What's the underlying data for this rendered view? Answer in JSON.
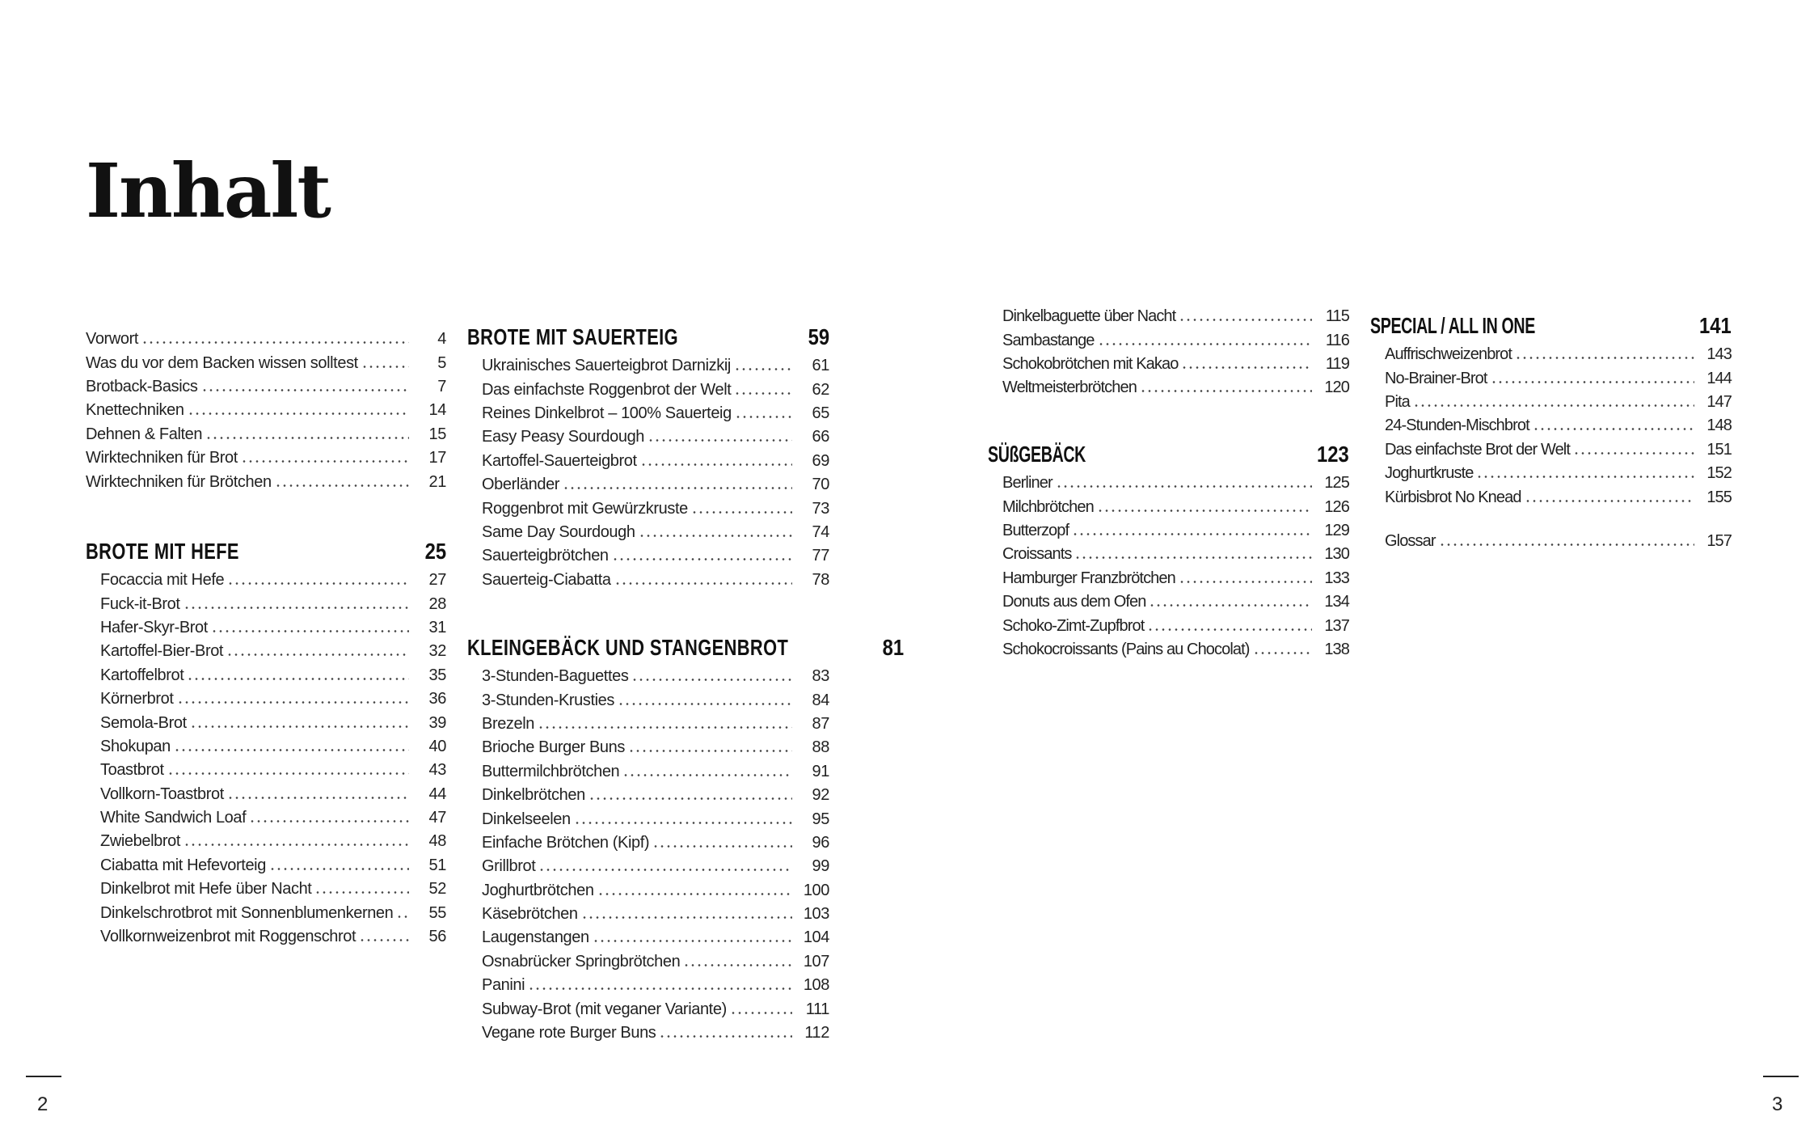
{
  "title": "Inhalt",
  "page_numbers": {
    "left": "2",
    "right": "3"
  },
  "blocks": [
    {
      "id": "intro",
      "items": [
        [
          "Vorwort",
          "4"
        ],
        [
          "Was du vor dem Backen wissen solltest",
          "5"
        ],
        [
          "Brotback-Basics",
          "7"
        ],
        [
          "Knettechniken",
          "14"
        ],
        [
          "Dehnen & Falten",
          "15"
        ],
        [
          "Wirktechniken für Brot",
          "17"
        ],
        [
          "Wirktechniken für Brötchen",
          "21"
        ]
      ]
    },
    {
      "id": "hefe",
      "heading": "BROTE MIT HEFE",
      "page": "25",
      "items": [
        [
          "Focaccia mit Hefe",
          "27"
        ],
        [
          "Fuck-it-Brot",
          "28"
        ],
        [
          "Hafer-Skyr-Brot",
          "31"
        ],
        [
          "Kartoffel-Bier-Brot",
          "32"
        ],
        [
          "Kartoffelbrot",
          "35"
        ],
        [
          "Körnerbrot",
          "36"
        ],
        [
          "Semola-Brot",
          "39"
        ],
        [
          "Shokupan",
          "40"
        ],
        [
          "Toastbrot",
          "43"
        ],
        [
          "Vollkorn-Toastbrot",
          "44"
        ],
        [
          "White Sandwich Loaf",
          "47"
        ],
        [
          "Zwiebelbrot",
          "48"
        ],
        [
          "Ciabatta mit Hefevorteig",
          "51"
        ],
        [
          "Dinkelbrot mit Hefe über Nacht",
          "52"
        ],
        [
          "Dinkelschrotbrot mit Sonnenblumenkernen",
          "55"
        ],
        [
          "Vollkornweizenbrot mit Roggenschrot",
          "56"
        ]
      ]
    },
    {
      "id": "sauerteig",
      "heading": "BROTE MIT SAUERTEIG",
      "page": "59",
      "items": [
        [
          "Ukrainisches Sauerteigbrot Darnizkij",
          "61"
        ],
        [
          "Das einfachste Roggenbrot der Welt",
          "62"
        ],
        [
          "Reines Dinkelbrot – 100% Sauerteig",
          "65"
        ],
        [
          "Easy Peasy Sourdough",
          "66"
        ],
        [
          "Kartoffel-Sauerteigbrot",
          "69"
        ],
        [
          "Oberländer",
          "70"
        ],
        [
          "Roggenbrot mit Gewürzkruste",
          "73"
        ],
        [
          "Same Day Sourdough",
          "74"
        ],
        [
          "Sauerteigbrötchen",
          "77"
        ],
        [
          "Sauerteig-Ciabatta",
          "78"
        ]
      ]
    },
    {
      "id": "kleingebaeck",
      "heading": "KLEINGEBÄCK UND STANGENBROT",
      "page": "81",
      "items": [
        [
          "3-Stunden-Baguettes",
          "83"
        ],
        [
          "3-Stunden-Krusties",
          "84"
        ],
        [
          "Brezeln",
          "87"
        ],
        [
          "Brioche Burger Buns",
          "88"
        ],
        [
          "Buttermilchbrötchen",
          "91"
        ],
        [
          "Dinkelbrötchen",
          "92"
        ],
        [
          "Dinkelseelen",
          "95"
        ],
        [
          "Einfache Brötchen (Kipf)",
          "96"
        ],
        [
          "Grillbrot",
          "99"
        ],
        [
          "Joghurtbrötchen",
          "100"
        ],
        [
          "Käsebrötchen",
          "103"
        ],
        [
          "Laugenstangen",
          "104"
        ],
        [
          "Osnabrücker Springbrötchen",
          "107"
        ],
        [
          "Panini",
          "108"
        ],
        [
          "Subway-Brot (mit veganer Variante)",
          "111"
        ],
        [
          "Vegane rote Burger Buns",
          "112"
        ]
      ]
    },
    {
      "id": "kleingebaeck-cont",
      "items": [
        [
          "Dinkelbaguette über Nacht",
          "115"
        ],
        [
          "Sambastange",
          "116"
        ],
        [
          "Schokobrötchen mit Kakao",
          "119"
        ],
        [
          "Weltmeisterbrötchen",
          "120"
        ]
      ]
    },
    {
      "id": "suessgebaeck",
      "heading": "SÜßGEBÄCK",
      "page": "123",
      "items": [
        [
          "Berliner",
          "125"
        ],
        [
          "Milchbrötchen",
          "126"
        ],
        [
          "Butterzopf",
          "129"
        ],
        [
          "Croissants",
          "130"
        ],
        [
          "Hamburger Franzbrötchen",
          "133"
        ],
        [
          "Donuts aus dem Ofen",
          "134"
        ],
        [
          "Schoko-Zimt-Zupfbrot",
          "137"
        ],
        [
          "Schokocroissants (Pains au Chocolat)",
          "138"
        ]
      ]
    },
    {
      "id": "special",
      "heading": "SPECIAL / ALL IN ONE",
      "page": "141",
      "items": [
        [
          "Auffrischweizenbrot",
          "143"
        ],
        [
          "No-Brainer-Brot",
          "144"
        ],
        [
          "Pita",
          "147"
        ],
        [
          "24-Stunden-Mischbrot",
          "148"
        ],
        [
          "Das einfachste Brot der Welt",
          "151"
        ],
        [
          "Joghurtkruste",
          "152"
        ],
        [
          "Kürbisbrot No Knead",
          "155"
        ]
      ]
    },
    {
      "id": "glossar",
      "items": [
        [
          "Glossar",
          "157"
        ]
      ]
    }
  ]
}
